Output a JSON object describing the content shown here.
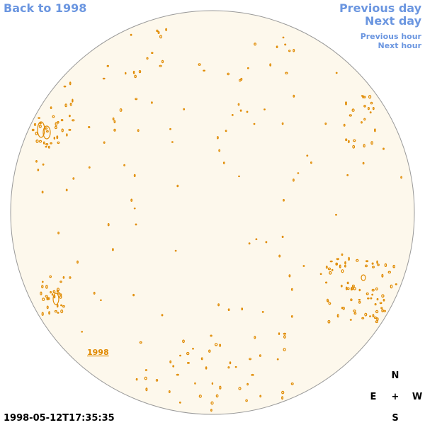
{
  "nav": {
    "back": "Back to 1998",
    "previous_day": "Previous day",
    "next_day": "Next day",
    "previous_hour": "Previous hour",
    "next_hour": "Next hour"
  },
  "image": {
    "year_link": "1998",
    "timestamp": "1998-05-12T17:35:35"
  },
  "compass": {
    "north": "N",
    "east": "E",
    "center": "+",
    "west": "W",
    "south": "S"
  }
}
